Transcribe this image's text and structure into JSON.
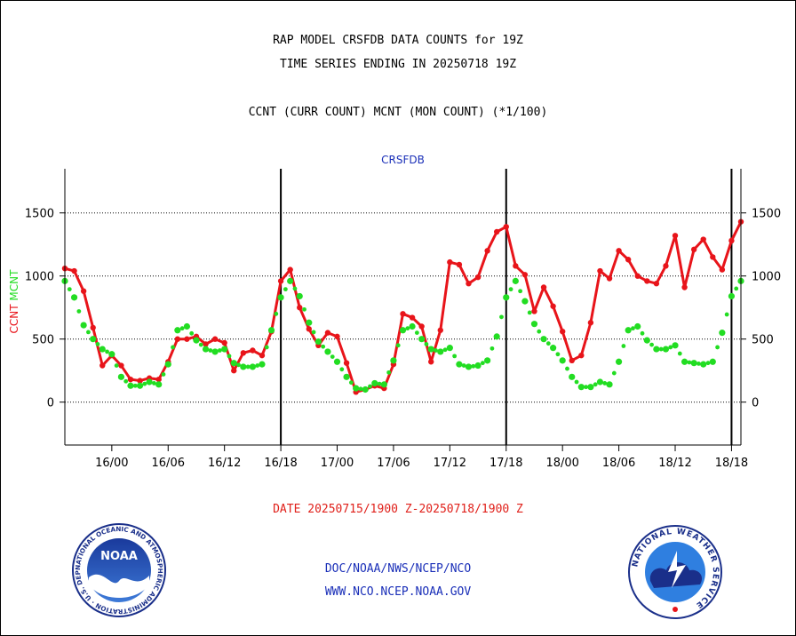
{
  "header": {
    "line1": "RAP MODEL CRSFDB DATA COUNTS for 19Z",
    "line2": "TIME SERIES ENDING IN 20250718 19Z",
    "line3": "CCNT (CURR COUNT) MCNT (MON COUNT) (*1/100)"
  },
  "footer": {
    "date_range": "DATE 20250715/1900 Z-20250718/1900 Z",
    "org_path": "DOC/NOAA/NWS/NCEP/NCO",
    "url": "WWW.NCO.NCEP.NOAA.GOV",
    "noaa_logo_text": "NOAA",
    "noaa_ring_text": "NATIONAL OCEANIC AND ATMOSPHERIC ADMINISTRATION · U.S. DEPARTMENT OF COMMERCE ·",
    "nws_ring_text": "NATIONAL WEATHER SERVICE"
  },
  "colors": {
    "ccnt": "#e8141a",
    "mcnt": "#22dd22",
    "station_label": "#1a2fb8"
  },
  "chart_data": {
    "type": "line",
    "title": "CRSFDB",
    "ylabel_left": "CCNT  MCNT",
    "ylim": [
      -340,
      1850
    ],
    "yticks": [
      0,
      500,
      1000,
      1500
    ],
    "ytick_labels": [
      "0",
      "500",
      "1000",
      "1500"
    ],
    "x_hours_span": [
      0,
      72
    ],
    "xticks_hours": [
      5,
      11,
      17,
      23,
      29,
      35,
      41,
      47,
      53,
      59,
      65,
      71
    ],
    "xtick_labels": [
      "16/00",
      "16/06",
      "16/12",
      "16/18",
      "17/00",
      "17/06",
      "17/12",
      "17/18",
      "18/00",
      "18/06",
      "18/12",
      "18/18"
    ],
    "grid": "horizontal",
    "day_markers_hours": [
      23,
      47,
      71
    ],
    "series": [
      {
        "name": "CCNT",
        "color": "#e8141a",
        "style": "solid",
        "values": [
          1060,
          1040,
          880,
          590,
          290,
          370,
          290,
          180,
          170,
          190,
          180,
          320,
          500,
          500,
          520,
          460,
          500,
          470,
          250,
          390,
          410,
          370,
          560,
          960,
          1050,
          750,
          580,
          450,
          550,
          520,
          310,
          80,
          100,
          130,
          110,
          300,
          700,
          670,
          600,
          320,
          570,
          1110,
          1090,
          940,
          990,
          1200,
          1350,
          1390,
          1080,
          1010,
          720,
          910,
          760,
          560,
          330,
          370,
          630,
          1040,
          980,
          1200,
          1130,
          1000,
          960,
          940,
          1080,
          1320,
          910,
          1210,
          1290,
          1150,
          1050,
          1280,
          1430
        ]
      },
      {
        "name": "MCNT",
        "color": "#22dd22",
        "style": "dotted",
        "values": [
          960,
          830,
          610,
          500,
          420,
          380,
          200,
          130,
          130,
          160,
          140,
          300,
          570,
          600,
          490,
          420,
          400,
          420,
          310,
          280,
          280,
          300,
          570,
          830,
          960,
          840,
          630,
          480,
          400,
          320,
          200,
          110,
          100,
          150,
          140,
          330,
          570,
          600,
          500,
          420,
          400,
          430,
          300,
          280,
          290,
          330,
          520,
          830,
          960,
          800,
          620,
          500,
          430,
          330,
          200,
          120,
          120,
          160,
          140,
          320,
          570,
          600,
          490,
          420,
          420,
          450,
          320,
          310,
          300,
          320,
          550,
          840,
          960
        ]
      }
    ]
  }
}
